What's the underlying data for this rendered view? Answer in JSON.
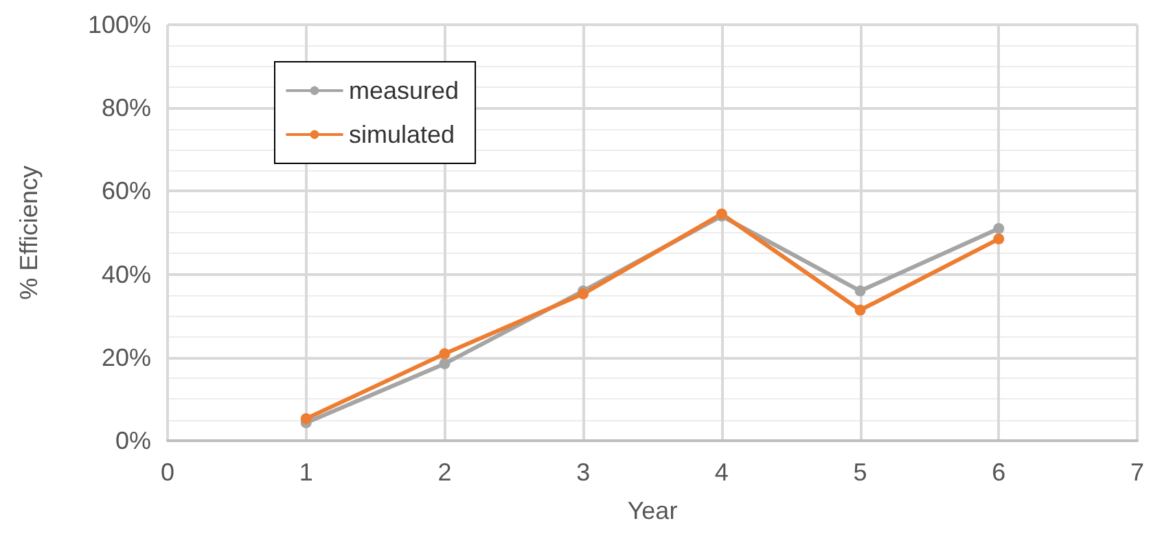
{
  "chart_data": {
    "type": "line",
    "xlabel": "Year",
    "ylabel": "% Efficiency",
    "x": [
      1,
      2,
      3,
      4,
      5,
      6
    ],
    "series": [
      {
        "name": "measured",
        "color": "#a5a5a5",
        "values": [
          4.3,
          18.5,
          36,
          54,
          36,
          51
        ]
      },
      {
        "name": "simulated",
        "color": "#ed7d31",
        "values": [
          5.3,
          20.9,
          35.3,
          54.5,
          31.4,
          48.5
        ]
      }
    ],
    "xlim": [
      0,
      7
    ],
    "xticks": [
      0,
      1,
      2,
      3,
      4,
      5,
      6,
      7
    ],
    "ylim": [
      0,
      100
    ],
    "yticks": [
      {
        "value": 0,
        "label": "0%"
      },
      {
        "value": 20,
        "label": "20%"
      },
      {
        "value": 40,
        "label": "40%"
      },
      {
        "value": 60,
        "label": "60%"
      },
      {
        "value": 80,
        "label": "80%"
      },
      {
        "value": 100,
        "label": "100%"
      }
    ],
    "grid": true,
    "legend": "top left",
    "marker": "circle",
    "line_style": "solid"
  }
}
